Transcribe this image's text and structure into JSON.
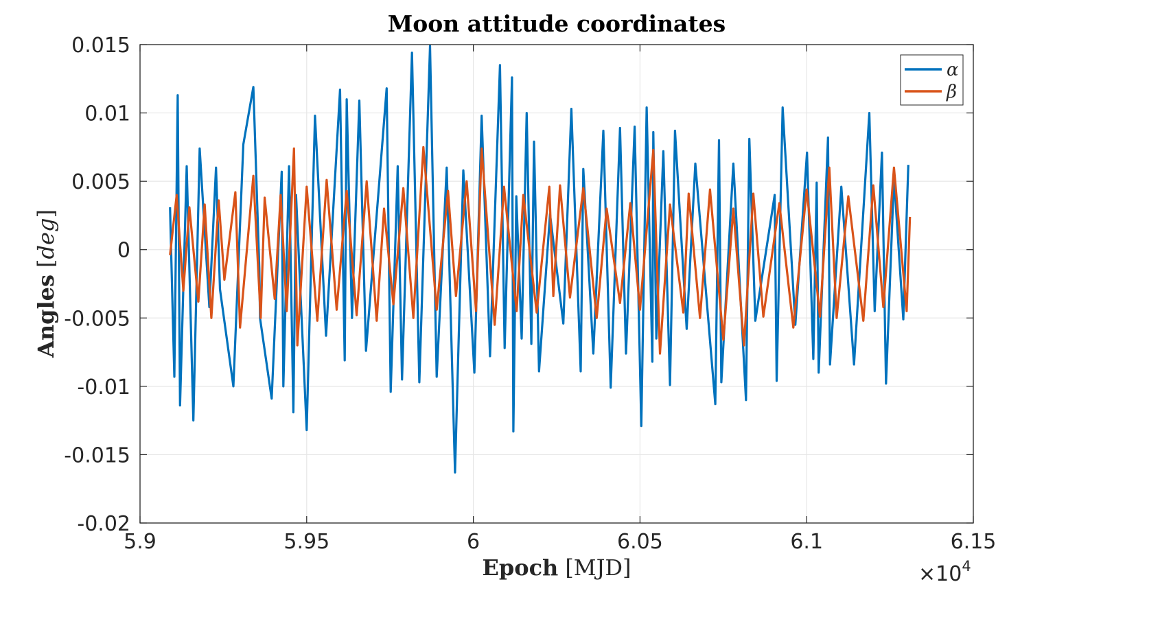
{
  "chart_data": {
    "type": "line",
    "title": "Moon attitude coordinates",
    "xlabel_bold": "Epoch",
    "xlabel_unit": "[MJD]",
    "ylabel_bold": "Angles",
    "ylabel_unit_open": "[",
    "ylabel_unit": "deg",
    "ylabel_unit_close": "]",
    "x_exponent_label": "×10",
    "x_exponent": "4",
    "xlim": [
      59000,
      61500
    ],
    "ylim": [
      -0.02,
      0.015
    ],
    "xticks": [
      59000,
      59500,
      60000,
      60500,
      61000,
      61500
    ],
    "xtick_labels": [
      "5.9",
      "5.95",
      "6",
      "6.05",
      "6.1",
      "6.15"
    ],
    "yticks": [
      0.015,
      0.01,
      0.005,
      0,
      -0.005,
      -0.01,
      -0.015,
      -0.02
    ],
    "ytick_labels": [
      "0.015",
      "0.01",
      "0.005",
      "0",
      "-0.005",
      "-0.01",
      "-0.015",
      "-0.02"
    ],
    "grid": true,
    "legend_position": "top-right",
    "series": [
      {
        "name": "α",
        "color": "#0072BD",
        "x": [
          59090,
          59103,
          59113,
          59120,
          59140,
          59160,
          59179,
          59208,
          59228,
          59240,
          59280,
          59310,
          59340,
          59358,
          59360,
          59395,
          59425,
          59430,
          59447,
          59460,
          59468,
          59500,
          59525,
          59558,
          59600,
          59614,
          59620,
          59636,
          59658,
          59678,
          59740,
          59752,
          59773,
          59786,
          59816,
          59838,
          59870,
          59890,
          59920,
          59945,
          59970,
          60003,
          60025,
          60050,
          60080,
          60094,
          60116,
          60120,
          60129,
          60145,
          60160,
          60174,
          60182,
          60197,
          60230,
          60270,
          60294,
          60322,
          60330,
          60360,
          60390,
          60412,
          60440,
          60458,
          60484,
          60504,
          60520,
          60537,
          60540,
          60549,
          60570,
          60590,
          60605,
          60640,
          60666,
          60726,
          60737,
          60744,
          60780,
          60818,
          60828,
          60846,
          60904,
          60910,
          60928,
          60966,
          61001,
          61020,
          61030,
          61036,
          61064,
          61070,
          61104,
          61142,
          61188,
          61204,
          61226,
          61238,
          61262,
          61290,
          61305
        ],
        "y": [
          0.0031,
          -0.0093,
          0.0113,
          -0.0114,
          0.0061,
          -0.0125,
          0.0074,
          -0.0042,
          0.006,
          -0.0029,
          -0.01,
          0.0077,
          0.0119,
          -0.0014,
          -0.005,
          -0.0109,
          0.0057,
          -0.01,
          0.0061,
          -0.0119,
          0.004,
          -0.0132,
          0.0098,
          -0.0063,
          0.0117,
          -0.0081,
          0.011,
          -0.005,
          0.0109,
          -0.0074,
          0.0118,
          -0.0104,
          0.0061,
          -0.0095,
          0.0144,
          -0.0097,
          0.0149,
          -0.0093,
          0.006,
          -0.0163,
          0.0058,
          -0.009,
          0.0098,
          -0.0078,
          0.0135,
          -0.0072,
          0.0126,
          -0.0133,
          0.0039,
          -0.0065,
          0.01,
          -0.0069,
          0.0079,
          -0.0089,
          0.0026,
          -0.0054,
          0.0103,
          -0.0089,
          0.0059,
          -0.0076,
          0.0087,
          -0.0101,
          0.0089,
          -0.0076,
          0.009,
          -0.0129,
          0.0104,
          -0.0082,
          0.0086,
          -0.0065,
          0.0072,
          -0.0099,
          0.0087,
          -0.0058,
          0.0063,
          -0.0113,
          0.008,
          -0.0097,
          0.0063,
          -0.011,
          0.0081,
          -0.0052,
          0.004,
          -0.0096,
          0.0104,
          -0.0055,
          0.0071,
          -0.008,
          0.0049,
          -0.009,
          0.0082,
          -0.0084,
          0.0046,
          -0.0084,
          0.01,
          -0.0045,
          0.0071,
          -0.0098,
          0.0053,
          -0.0051,
          0.0062
        ]
      },
      {
        "name": "β",
        "color": "#D95319",
        "x": [
          59090,
          59110,
          59130,
          59148,
          59175,
          59194,
          59214,
          59236,
          59253,
          59286,
          59300,
          59340,
          59362,
          59374,
          59404,
          59422,
          59440,
          59462,
          59472,
          59500,
          59532,
          59560,
          59590,
          59620,
          59650,
          59680,
          59710,
          59732,
          59760,
          59790,
          59820,
          59850,
          59890,
          59924,
          59948,
          59980,
          60008,
          60025,
          60064,
          60092,
          60130,
          60150,
          60190,
          60228,
          60240,
          60260,
          60290,
          60330,
          60370,
          60400,
          60440,
          60471,
          60500,
          60540,
          60560,
          60590,
          60630,
          60646,
          60680,
          60710,
          60750,
          60780,
          60812,
          60840,
          60870,
          60918,
          60960,
          61000,
          61040,
          61068,
          61090,
          61125,
          61170,
          61200,
          61230,
          61262,
          61300,
          61310
        ],
        "y": [
          -0.0004,
          0.004,
          -0.003,
          0.0031,
          -0.0038,
          0.0033,
          -0.005,
          0.0036,
          -0.0022,
          0.0042,
          -0.0057,
          0.0054,
          -0.005,
          0.0038,
          -0.0036,
          0.004,
          -0.0045,
          0.0074,
          -0.007,
          0.0046,
          -0.0052,
          0.0051,
          -0.0044,
          0.0043,
          -0.0048,
          0.005,
          -0.0052,
          0.003,
          -0.004,
          0.0045,
          -0.005,
          0.0075,
          -0.0044,
          0.0043,
          -0.0034,
          0.005,
          -0.0045,
          0.0074,
          -0.0055,
          0.0046,
          -0.0045,
          0.004,
          -0.0046,
          0.0046,
          -0.0034,
          0.0047,
          -0.0035,
          0.0045,
          -0.005,
          0.003,
          -0.0039,
          0.0034,
          -0.0044,
          0.0073,
          -0.0076,
          0.0033,
          -0.0046,
          0.0041,
          -0.005,
          0.0044,
          -0.0066,
          0.003,
          -0.007,
          0.0041,
          -0.0049,
          0.0034,
          -0.0057,
          0.0044,
          -0.0049,
          0.006,
          -0.005,
          0.0039,
          -0.0052,
          0.0047,
          -0.0042,
          0.006,
          -0.0045,
          0.0024
        ]
      }
    ]
  }
}
